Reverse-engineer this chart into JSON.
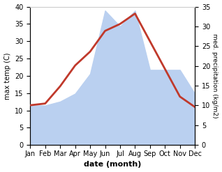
{
  "months": [
    "Jan",
    "Feb",
    "Mar",
    "Apr",
    "May",
    "Jun",
    "Jul",
    "Aug",
    "Sep",
    "Oct",
    "Nov",
    "Dec"
  ],
  "temperature": [
    11.5,
    12,
    17,
    23,
    27,
    33,
    35,
    38,
    30,
    22,
    14,
    11
  ],
  "precipitation": [
    10,
    10,
    11,
    13,
    18,
    34,
    30,
    34,
    19,
    19,
    19,
    13
  ],
  "temp_color": "#c0392b",
  "precip_color": "#bad0f0",
  "left_ylim": [
    0,
    40
  ],
  "right_ylim": [
    0,
    35
  ],
  "left_ylabel": "max temp (C)",
  "right_ylabel": "med. precipitation (kg/m2)",
  "xlabel": "date (month)",
  "bg_color": "#ffffff",
  "grid_color": "#cccccc",
  "temp_linewidth": 2.0
}
